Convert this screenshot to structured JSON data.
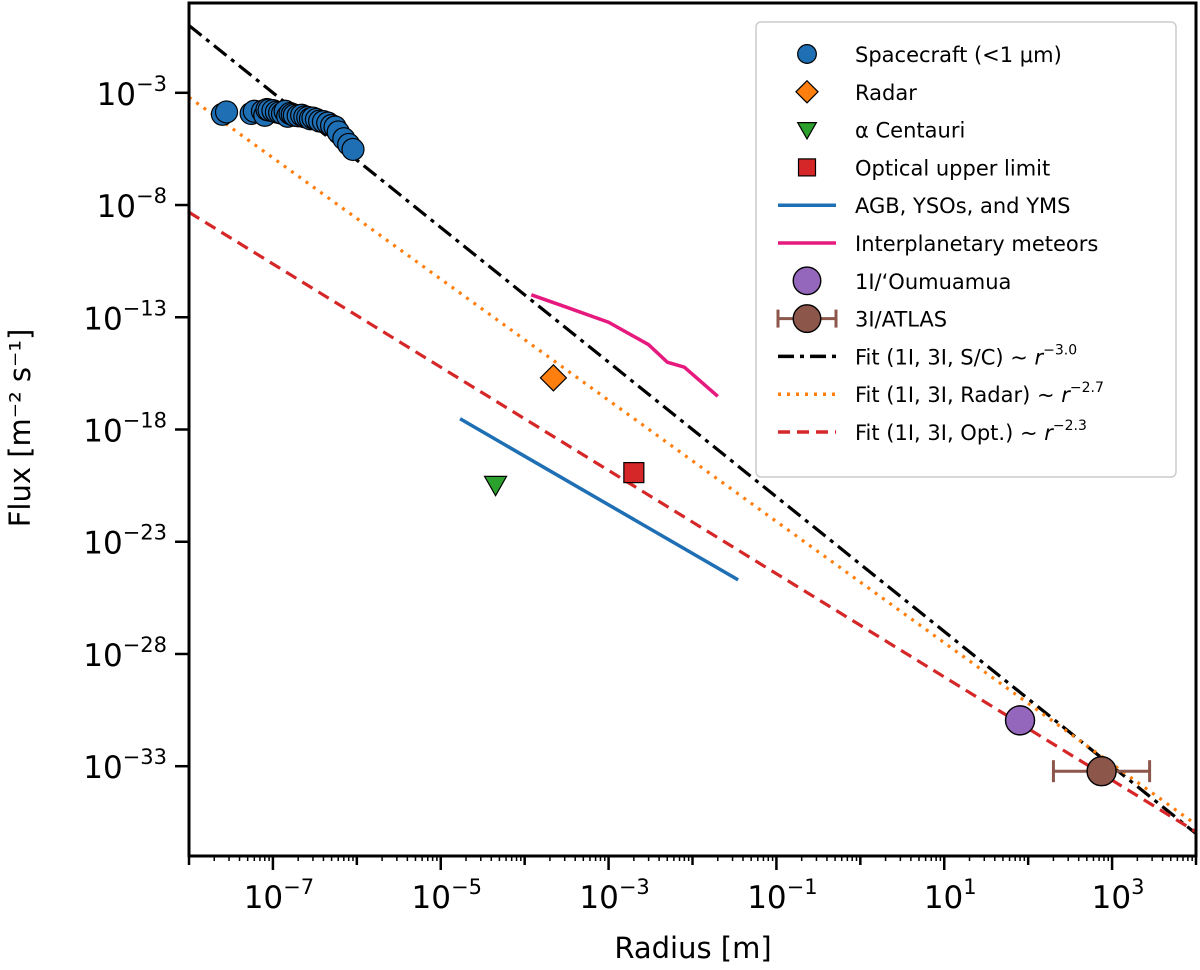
{
  "chart_data": {
    "type": "scatter",
    "xlabel": "Radius [m]",
    "ylabel": "Flux [m⁻² s⁻¹]",
    "x_scale": "log",
    "y_scale": "log",
    "xlim": [
      1e-08,
      10000.0
    ],
    "ylim": [
      1e-37,
      10.0
    ],
    "x_ticks": [
      {
        "label_base": "10",
        "label_exp": "−7",
        "value": 1e-07
      },
      {
        "label_base": "10",
        "label_exp": "−5",
        "value": 1e-05
      },
      {
        "label_base": "10",
        "label_exp": "−3",
        "value": 0.001
      },
      {
        "label_base": "10",
        "label_exp": "−1",
        "value": 0.1
      },
      {
        "label_base": "10",
        "label_exp": "1",
        "value": 10.0
      },
      {
        "label_base": "10",
        "label_exp": "3",
        "value": 1000.0
      }
    ],
    "y_ticks": [
      {
        "label_base": "10",
        "label_exp": "−3",
        "value": 0.001
      },
      {
        "label_base": "10",
        "label_exp": "−8",
        "value": 1e-08
      },
      {
        "label_base": "10",
        "label_exp": "−13",
        "value": 1e-13
      },
      {
        "label_base": "10",
        "label_exp": "−18",
        "value": 1e-18
      },
      {
        "label_base": "10",
        "label_exp": "−23",
        "value": 1e-23
      },
      {
        "label_base": "10",
        "label_exp": "−28",
        "value": 1e-28
      },
      {
        "label_base": "10",
        "label_exp": "−33",
        "value": 1e-33
      }
    ],
    "grid": false,
    "legend_position": "top-right",
    "series": [
      {
        "name": "Spacecraft (<1 μm)",
        "kind": "scatter",
        "marker": "circle",
        "color": "#1f6fb5",
        "points": [
          [
            2.5e-08,
            0.00011
          ],
          [
            2.8e-08,
            0.00014
          ],
          [
            5.5e-08,
            0.00012
          ],
          [
            6e-08,
            0.00015
          ],
          [
            7.5e-08,
            0.00015
          ],
          [
            8e-08,
            0.0001
          ],
          [
            8.5e-08,
            0.00018
          ],
          [
            9e-08,
            0.00017
          ],
          [
            1e-07,
            0.00016
          ],
          [
            1.1e-07,
            0.00014
          ],
          [
            1.2e-07,
            0.00013
          ],
          [
            1.3e-07,
            0.00012
          ],
          [
            1.4e-07,
            0.00015
          ],
          [
            1.5e-07,
            9e-05
          ],
          [
            1.6e-07,
            0.00012
          ],
          [
            1.7e-07,
            0.00011
          ],
          [
            1.8e-07,
            0.0001
          ],
          [
            2e-07,
            9.5e-05
          ],
          [
            2.2e-07,
            0.0001
          ],
          [
            2.4e-07,
            8.5e-05
          ],
          [
            2.6e-07,
            8e-05
          ],
          [
            2.8e-07,
            7e-05
          ],
          [
            3e-07,
            7.5e-05
          ],
          [
            3.3e-07,
            6.5e-05
          ],
          [
            3.6e-07,
            5.5e-05
          ],
          [
            4e-07,
            5.2e-05
          ],
          [
            4.5e-07,
            4.5e-05
          ],
          [
            5e-07,
            3.5e-05
          ],
          [
            5.5e-07,
            3e-05
          ],
          [
            6e-07,
            1.8e-05
          ],
          [
            7e-07,
            9e-06
          ],
          [
            8e-07,
            5e-06
          ],
          [
            9e-07,
            3e-06
          ]
        ]
      },
      {
        "name": "Radar",
        "kind": "scatter",
        "marker": "diamond",
        "color": "#ff7f0e",
        "points": [
          [
            0.00022,
            2e-16
          ]
        ]
      },
      {
        "name": "α Centauri",
        "kind": "scatter",
        "marker": "triangle-down",
        "color": "#2ca02c",
        "points": [
          [
            4.5e-05,
            3.5e-21
          ]
        ]
      },
      {
        "name": "Optical upper limit",
        "kind": "scatter",
        "marker": "square",
        "color": "#d62728",
        "points": [
          [
            0.002,
            1.2e-20
          ]
        ]
      },
      {
        "name": "AGB, YSOs, and YMS",
        "kind": "line",
        "color": "#1f6fb5",
        "points": [
          [
            1.7e-05,
            3e-18
          ],
          [
            0.035,
            2e-25
          ]
        ]
      },
      {
        "name": "Interplanetary meteors",
        "kind": "line",
        "color": "#e6197e",
        "points": [
          [
            0.00012,
            1e-12
          ],
          [
            0.0003,
            3e-13
          ],
          [
            0.001,
            6e-14
          ],
          [
            0.003,
            6e-15
          ],
          [
            0.005,
            1e-15
          ],
          [
            0.008,
            6e-16
          ],
          [
            0.02,
            3e-17
          ]
        ]
      },
      {
        "name": "1I/‘Oumuamua",
        "kind": "scatter",
        "marker": "circle-large",
        "color": "#9467bd",
        "points": [
          [
            80,
            1.1e-31
          ]
        ]
      },
      {
        "name": "3I/ATLAS",
        "kind": "scatter",
        "marker": "circle-large",
        "color": "#8c564b",
        "points": [
          [
            750,
            6e-34
          ]
        ],
        "xerr": [
          [
            200,
            2800
          ]
        ]
      },
      {
        "name": "Fit (1I, 3I, S/C)",
        "label_suffix_base": "∼",
        "label_exp": "−3.0",
        "kind": "fit",
        "style": "dashdot",
        "color": "#000000",
        "slope": -3.0,
        "anchor": [
          1e-06,
          1e-06
        ],
        "x_range": [
          1e-08,
          10000.0
        ]
      },
      {
        "name": "Fit (1I, 3I, Radar)",
        "label_suffix_base": "∼",
        "label_exp": "−2.7",
        "kind": "fit",
        "style": "dotted",
        "color": "#ff7f0e",
        "slope": -2.7,
        "anchor": [
          0.001,
          2e-17
        ],
        "x_range": [
          1e-08,
          10000.0
        ]
      },
      {
        "name": "Fit (1I, 3I, Opt.)",
        "label_suffix_base": "∼",
        "label_exp": "−2.3",
        "kind": "fit",
        "style": "dashed",
        "color": "#d62728",
        "slope": -2.3,
        "anchor": [
          0.001,
          1.5e-20
        ],
        "x_range": [
          1e-08,
          10000.0
        ]
      }
    ]
  }
}
